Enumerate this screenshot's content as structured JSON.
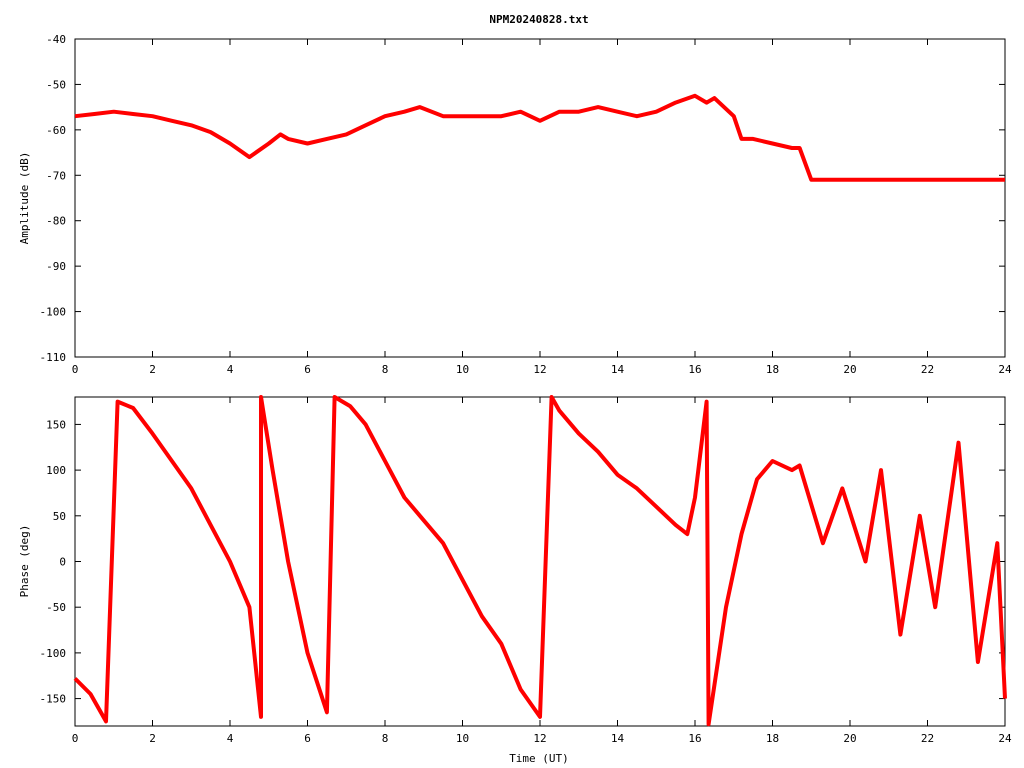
{
  "chart_data": [
    {
      "type": "line",
      "title": "NPM20240828.txt",
      "xlabel": "",
      "ylabel": "Amplitude (dB)",
      "xlim": [
        0,
        24
      ],
      "ylim": [
        -110,
        -40
      ],
      "xticks": [
        0,
        2,
        4,
        6,
        8,
        10,
        12,
        14,
        16,
        18,
        20,
        22,
        24
      ],
      "yticks": [
        -40,
        -50,
        -60,
        -70,
        -80,
        -90,
        -100,
        -110
      ],
      "ytick_labels": [
        "-40",
        "-50",
        "-60",
        "-70",
        "-80",
        "-90",
        "-100",
        "-110"
      ],
      "grid": false,
      "color": "#ff0000",
      "series": [
        {
          "x": [
            0,
            0.5,
            1,
            1.5,
            2,
            2.5,
            3,
            3.5,
            4,
            4.5,
            5,
            5.3,
            5.5,
            6,
            6.5,
            7,
            7.5,
            8,
            8.5,
            8.9,
            9.5,
            10,
            10.5,
            11,
            11.5,
            12,
            12.5,
            13,
            13.5,
            14,
            14.5,
            15,
            15.5,
            16,
            16.3,
            16.5,
            17,
            17.2,
            17.5,
            18,
            18.5,
            18.7,
            19,
            19.5,
            20,
            20.5,
            21,
            21.5,
            22,
            22.5,
            23,
            23.5,
            24
          ],
          "y": [
            -57,
            -56.5,
            -56,
            -56.5,
            -57,
            -58,
            -59,
            -60.5,
            -63,
            -66,
            -63,
            -61,
            -62,
            -63,
            -62,
            -61,
            -59,
            -57,
            -56,
            -55,
            -57,
            -57,
            -57,
            -57,
            -56,
            -58,
            -56,
            -56,
            -55,
            -56,
            -57,
            -56,
            -54,
            -52.5,
            -54,
            -53,
            -57,
            -62,
            -62,
            -63,
            -64,
            -64,
            -71,
            -71,
            -71,
            -71,
            -71,
            -71,
            -71,
            -71,
            -71,
            -71,
            -71
          ]
        }
      ]
    },
    {
      "type": "line",
      "title": "",
      "xlabel": "Time (UT)",
      "ylabel": "Phase (deg)",
      "xlim": [
        0,
        24
      ],
      "ylim": [
        -180,
        180
      ],
      "xticks": [
        0,
        2,
        4,
        6,
        8,
        10,
        12,
        14,
        16,
        18,
        20,
        22,
        24
      ],
      "yticks": [
        150,
        100,
        50,
        0,
        -50,
        -100,
        -150
      ],
      "ytick_labels": [
        "150",
        "100",
        "50",
        "0",
        "-50",
        "-100",
        "-150"
      ],
      "grid": false,
      "color": "#ff0000",
      "series": [
        {
          "x": [
            0,
            0.4,
            0.8,
            1.1,
            1.5,
            2,
            2.5,
            3,
            3.5,
            4,
            4.5,
            4.8,
            4.8,
            5.1,
            5.5,
            6,
            6.5,
            6.7,
            7.1,
            7.5,
            8,
            8.5,
            9,
            9.5,
            10,
            10.5,
            11,
            11.5,
            12,
            12.3,
            12.5,
            13,
            13.5,
            14,
            14.5,
            15,
            15.5,
            15.8,
            16,
            16.3,
            16.35,
            16.8,
            17.2,
            17.6,
            18,
            18.5,
            18.7,
            19.3,
            19.8,
            20.4,
            20.8,
            21.3,
            21.8,
            22.2,
            22.8,
            23.3,
            23.8,
            24
          ],
          "y": [
            -128,
            -145,
            -175,
            175,
            168,
            140,
            110,
            80,
            40,
            0,
            -50,
            -170,
            180,
            100,
            0,
            -100,
            -165,
            180,
            170,
            150,
            110,
            70,
            45,
            20,
            -20,
            -60,
            -90,
            -140,
            -170,
            180,
            165,
            140,
            120,
            95,
            80,
            60,
            40,
            30,
            70,
            175,
            -178,
            -50,
            30,
            90,
            110,
            100,
            105,
            20,
            80,
            0,
            100,
            -80,
            50,
            -50,
            130,
            -110,
            20,
            -150
          ]
        }
      ]
    }
  ]
}
